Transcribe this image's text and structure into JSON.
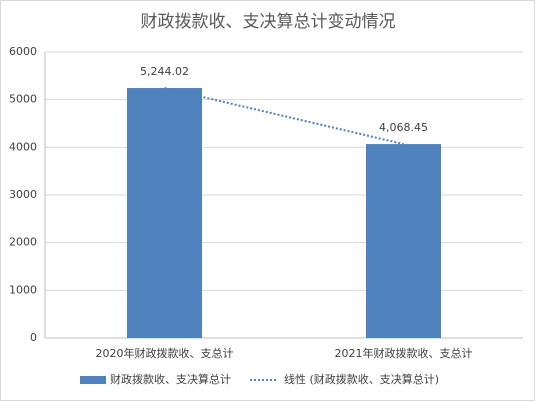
{
  "chart_data": {
    "type": "bar",
    "title": "财政拨款收、支决算总计变动情况",
    "categories": [
      "2020年财政拨款收、支总计",
      "2021年财政拨款收、支总计"
    ],
    "series": [
      {
        "name": "财政拨款收、支决算总计",
        "color": "#4f81bd",
        "values": [
          5244.02,
          4068.45
        ],
        "value_labels": [
          "5,244.02",
          "4,068.45"
        ]
      }
    ],
    "trendline": {
      "name": "线性 (财政拨款收、支决算总计)",
      "color": "#4f81bd"
    },
    "ylim": [
      0,
      6000
    ],
    "yticks": [
      0,
      1000,
      2000,
      3000,
      4000,
      5000,
      6000
    ],
    "grid": true
  }
}
